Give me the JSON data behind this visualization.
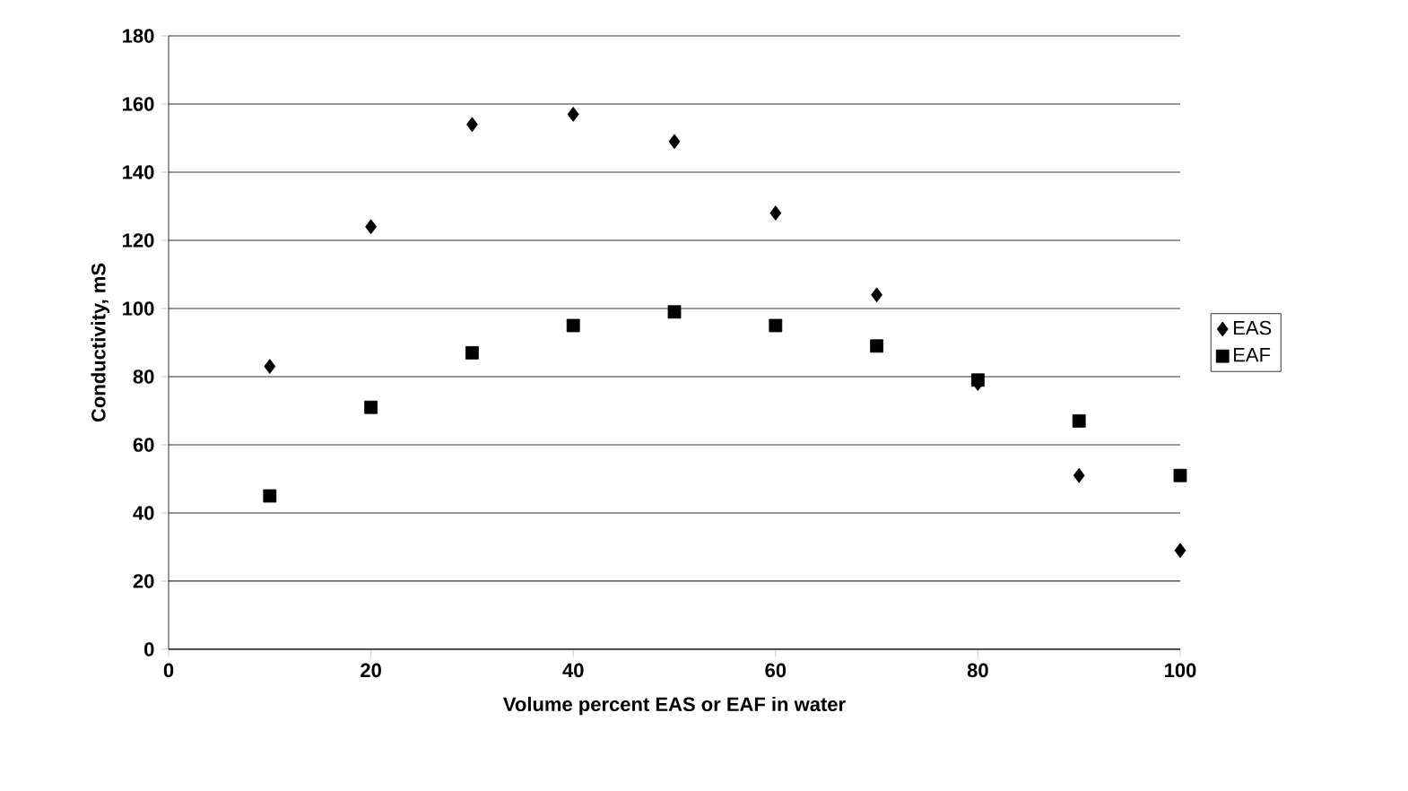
{
  "chart_data": {
    "type": "scatter",
    "xlabel": "Volume percent EAS or EAF in water",
    "ylabel": "Conductivity, mS",
    "x": [
      10,
      20,
      30,
      40,
      50,
      60,
      70,
      80,
      90,
      100
    ],
    "series": [
      {
        "name": "EAS",
        "color": "#000000",
        "marker": "diamond",
        "values": [
          83,
          124,
          154,
          157,
          149,
          128,
          104,
          78,
          51,
          29
        ]
      },
      {
        "name": "EAF",
        "color": "#000000",
        "marker": "square",
        "values": [
          45,
          71,
          87,
          95,
          99,
          95,
          89,
          79,
          67,
          51
        ]
      }
    ],
    "xlim": [
      0,
      100
    ],
    "xticks": [
      0,
      20,
      40,
      60,
      80,
      100
    ],
    "ylim": [
      0,
      180
    ],
    "yticks": [
      0,
      20,
      40,
      60,
      80,
      100,
      120,
      140,
      160,
      180
    ],
    "grid": "y",
    "legend": "right"
  }
}
